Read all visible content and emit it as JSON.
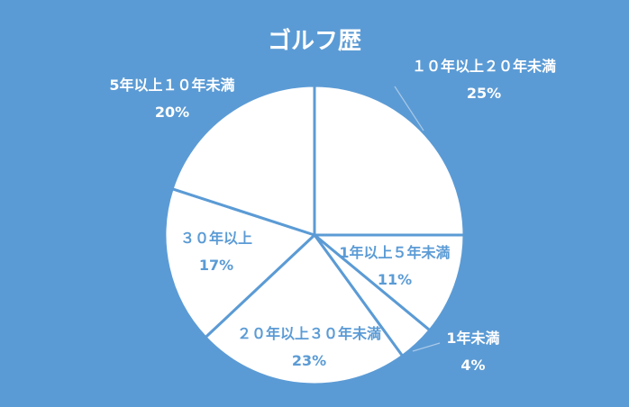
{
  "chart_data": {
    "type": "pie",
    "title": "ゴルフ歴",
    "slices": [
      {
        "label": "１０年以上２０年未満",
        "value": 25,
        "value_label": "25%"
      },
      {
        "label": "1年以上５年未満",
        "value": 11,
        "value_label": "11%"
      },
      {
        "label": "1年未満",
        "value": 4,
        "value_label": "4%"
      },
      {
        "label": "２０年以上３０年未満",
        "value": 23,
        "value_label": "23%"
      },
      {
        "label": "３０年以上",
        "value": 17,
        "value_label": "17%"
      },
      {
        "label": "5年以上１０年未満",
        "value": 20,
        "value_label": "20%"
      }
    ],
    "colors": {
      "background": "#5b9bd5",
      "slice_fill": "#ffffff",
      "slice_stroke": "#5b9bd5",
      "label_inside": "#5b9bd5",
      "label_outside": "#ffffff",
      "leader_line": "#a9c9e8"
    }
  }
}
